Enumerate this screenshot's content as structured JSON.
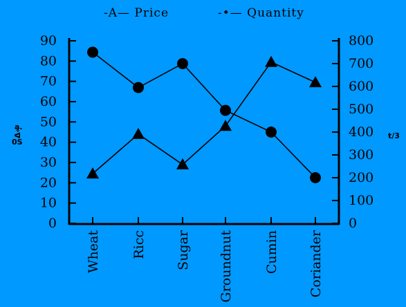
{
  "chart_data": {
    "type": "line",
    "categories": [
      "Wheat",
      "Ricc",
      "Sugar",
      "Groundnut",
      "Cumin",
      "Coriander"
    ],
    "legend": {
      "price_label": "-A— Price",
      "quantity_label": "-•— Quantity",
      "placement": "top"
    },
    "left_axis_ticks": [
      "0",
      "10",
      "20",
      "30",
      "40",
      "50",
      "60",
      "70",
      "80",
      "90"
    ],
    "right_axis_ticks": [
      "0",
      "100",
      "200",
      "300",
      "400",
      "500",
      "600",
      "700",
      "800"
    ],
    "left_side_label_top": "a.",
    "left_side_label_mid": "Δ«",
    "left_side_label_bottom": "0S",
    "right_side_label": "t/3",
    "ylim_left": [
      0,
      90
    ],
    "ylim_right": [
      0,
      800
    ],
    "series": [
      {
        "name": "Price",
        "axis": "left",
        "marker": "triangle",
        "values": [
          24.5,
          44,
          29,
          48,
          79.5,
          69.5
        ]
      },
      {
        "name": "Quantity",
        "axis": "right",
        "marker": "circle",
        "values": [
          750,
          595,
          700,
          495,
          400,
          200
        ]
      }
    ],
    "grid": false
  }
}
